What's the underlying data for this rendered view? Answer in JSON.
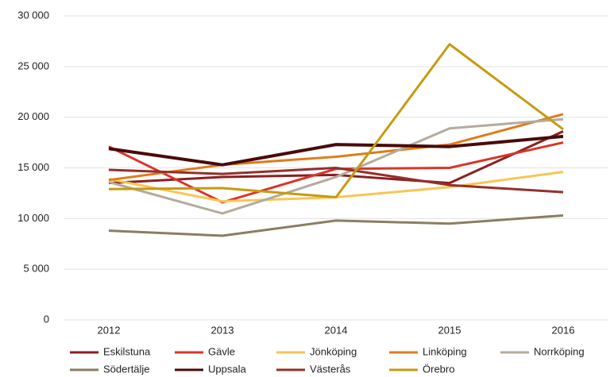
{
  "chart_data": {
    "type": "line",
    "categories": [
      "2012",
      "2013",
      "2014",
      "2015",
      "2016"
    ],
    "ylim": [
      0,
      30000
    ],
    "yticks": [
      0,
      {
        "value": 5000,
        "label": "5 000"
      },
      {
        "value": 10000,
        "label": "10 000"
      },
      {
        "value": 15000,
        "label": "15 000"
      },
      {
        "value": 20000,
        "label": "20 000"
      },
      {
        "value": 25000,
        "label": "25 000"
      },
      {
        "value": 30000,
        "label": "30 000"
      }
    ],
    "grid": true,
    "legend": "bottom",
    "series": [
      {
        "name": "Eskilstuna",
        "color": "#8b1f1f",
        "values": [
          13500,
          14100,
          14300,
          13500,
          18600
        ]
      },
      {
        "name": "Gävle",
        "color": "#d9352a",
        "values": [
          17100,
          11600,
          14900,
          15000,
          17500
        ]
      },
      {
        "name": "Jönköping",
        "color": "#f7c653",
        "values": [
          13900,
          11700,
          12100,
          13100,
          14600
        ]
      },
      {
        "name": "Linköping",
        "color": "#e07b1a",
        "values": [
          13800,
          15300,
          16100,
          17300,
          20300
        ]
      },
      {
        "name": "Norrköping",
        "color": "#b3ab9c",
        "values": [
          13600,
          10500,
          14100,
          18900,
          19800
        ]
      },
      {
        "name": "Södertälje",
        "color": "#8a7e62",
        "values": [
          8800,
          8300,
          9800,
          9500,
          10300
        ]
      },
      {
        "name": "Uppsala",
        "color": "#4a0a0a",
        "values": [
          16900,
          15300,
          17300,
          17100,
          18100
        ]
      },
      {
        "name": "Västerås",
        "color": "#93302a",
        "values": [
          14800,
          14400,
          15000,
          13300,
          12600
        ]
      },
      {
        "name": "Örebro",
        "color": "#c89a10",
        "values": [
          12900,
          13000,
          12100,
          27200,
          18800
        ]
      }
    ]
  }
}
